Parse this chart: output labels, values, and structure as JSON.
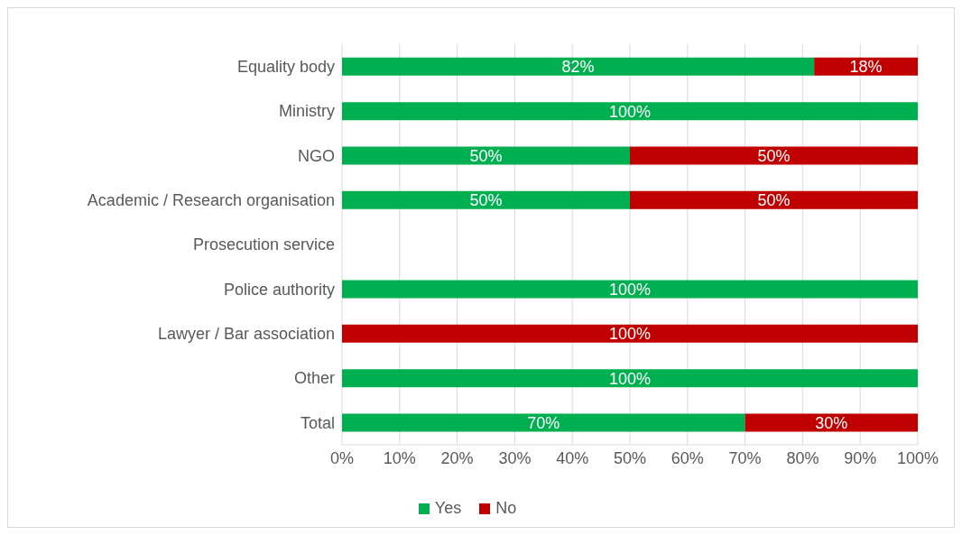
{
  "chart_data": {
    "type": "bar",
    "orientation": "horizontal",
    "stacked": true,
    "categories": [
      "Equality body",
      "Ministry",
      "NGO",
      "Academic / Research organisation",
      "Prosecution service",
      "Police authority",
      "Lawyer / Bar association",
      "Other",
      "Total"
    ],
    "series": [
      {
        "name": "Yes",
        "color": "#00b050",
        "values": [
          82,
          100,
          50,
          50,
          null,
          100,
          null,
          100,
          70
        ],
        "value_labels": [
          "82%",
          "100%",
          "50%",
          "50%",
          null,
          "100%",
          null,
          "100%",
          "70%"
        ]
      },
      {
        "name": "No",
        "color": "#c00000",
        "values": [
          18,
          null,
          50,
          50,
          null,
          null,
          100,
          null,
          30
        ],
        "value_labels": [
          "18%",
          null,
          "50%",
          "50%",
          null,
          null,
          "100%",
          null,
          "30%"
        ]
      }
    ],
    "xlim": [
      0,
      100
    ],
    "xticks": [
      {
        "value": 0,
        "label": "0%"
      },
      {
        "value": 10,
        "label": "10%"
      },
      {
        "value": 20,
        "label": "20%"
      },
      {
        "value": 30,
        "label": "30%"
      },
      {
        "value": 40,
        "label": "40%"
      },
      {
        "value": 50,
        "label": "50%"
      },
      {
        "value": 60,
        "label": "60%"
      },
      {
        "value": 70,
        "label": "70%"
      },
      {
        "value": 80,
        "label": "80%"
      },
      {
        "value": 90,
        "label": "90%"
      },
      {
        "value": 100,
        "label": "100%"
      }
    ],
    "grid": "x",
    "legend": "bottom"
  }
}
